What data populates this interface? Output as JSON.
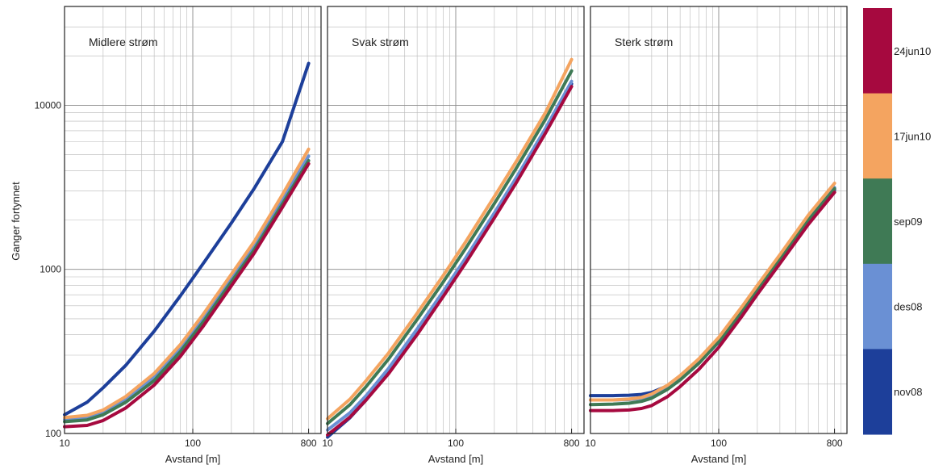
{
  "figure": {
    "ylabel": "Ganger fortynnet",
    "xlabel": "Avstand [m]"
  },
  "colorbar": {
    "entries": [
      {
        "label": "24jun10",
        "color": "#a6093f"
      },
      {
        "label": "17jun10",
        "color": "#f4a460"
      },
      {
        "label": "sep09",
        "color": "#3f7a55"
      },
      {
        "label": "des08",
        "color": "#6a90d4"
      },
      {
        "label": "nov08",
        "color": "#1d3f9a"
      }
    ]
  },
  "chart_data": [
    {
      "type": "line",
      "title": "Midlere strøm",
      "xlabel": "Avstand [m]",
      "ylabel": "Ganger fortynnet",
      "xscale": "log",
      "yscale": "log",
      "xlim": [
        10,
        1000
      ],
      "ylim": [
        100,
        40000
      ],
      "xticks": [
        "10",
        "100",
        "800"
      ],
      "yticks": [
        "100",
        "1000",
        "10000"
      ],
      "grid": true,
      "x": [
        10,
        15,
        20,
        30,
        50,
        80,
        120,
        200,
        300,
        500,
        800
      ],
      "series": [
        {
          "name": "nov08",
          "color": "#1d3f9a",
          "values": [
            130,
            155,
            190,
            260,
            420,
            690,
            1080,
            1920,
            3100,
            6000,
            18000
          ]
        },
        {
          "name": "des08",
          "color": "#6a90d4",
          "values": [
            122,
            126,
            135,
            162,
            220,
            330,
            500,
            880,
            1380,
            2650,
            4900
          ]
        },
        {
          "name": "sep09",
          "color": "#3f7a55",
          "values": [
            118,
            121,
            130,
            155,
            210,
            315,
            475,
            840,
            1310,
            2500,
            4600
          ]
        },
        {
          "name": "17jun10",
          "color": "#f4a460",
          "values": [
            125,
            129,
            139,
            168,
            232,
            348,
            530,
            935,
            1470,
            2850,
            5400
          ]
        },
        {
          "name": "24jun10",
          "color": "#a6093f",
          "values": [
            110,
            112,
            120,
            143,
            197,
            295,
            448,
            795,
            1250,
            2390,
            4400
          ]
        }
      ]
    },
    {
      "type": "line",
      "title": "Svak strøm",
      "xlabel": "Avstand [m]",
      "xscale": "log",
      "yscale": "log",
      "xlim": [
        10,
        1000
      ],
      "ylim": [
        100,
        40000
      ],
      "xticks": [
        "10",
        "100",
        "800"
      ],
      "grid": true,
      "x": [
        10,
        15,
        20,
        30,
        50,
        80,
        120,
        200,
        300,
        500,
        800
      ],
      "series": [
        {
          "name": "nov08",
          "color": "#1d3f9a",
          "values": [
            95,
            125,
            160,
            235,
            410,
            700,
            1120,
            2100,
            3500,
            6900,
            13500
          ]
        },
        {
          "name": "des08",
          "color": "#6a90d4",
          "values": [
            105,
            134,
            170,
            250,
            433,
            735,
            1180,
            2210,
            3680,
            7200,
            14000
          ]
        },
        {
          "name": "sep09",
          "color": "#3f7a55",
          "values": [
            115,
            150,
            193,
            285,
            495,
            840,
            1350,
            2520,
            4200,
            8200,
            16200
          ]
        },
        {
          "name": "17jun10",
          "color": "#f4a460",
          "values": [
            123,
            162,
            210,
            310,
            540,
            920,
            1480,
            2780,
            4620,
            9000,
            19000
          ]
        },
        {
          "name": "24jun10",
          "color": "#a6093f",
          "values": [
            98,
            126,
            160,
            232,
            400,
            685,
            1100,
            2060,
            3430,
            6750,
            13000
          ]
        }
      ]
    },
    {
      "type": "line",
      "title": "Sterk strøm",
      "xlabel": "Avstand [m]",
      "xscale": "log",
      "yscale": "log",
      "xlim": [
        10,
        1000
      ],
      "ylim": [
        100,
        40000
      ],
      "xticks": [
        "10",
        "100",
        "800"
      ],
      "grid": true,
      "x": [
        10,
        15,
        20,
        25,
        30,
        40,
        50,
        70,
        100,
        150,
        200,
        300,
        500,
        800
      ],
      "series": [
        {
          "name": "nov08",
          "color": "#1d3f9a",
          "values": [
            170,
            170,
            171,
            173,
            178,
            195,
            218,
            270,
            360,
            540,
            740,
            1130,
            1960,
            3050
          ]
        },
        {
          "name": "des08",
          "color": "#6a90d4",
          "values": [
            160,
            160,
            161,
            164,
            170,
            190,
            215,
            270,
            365,
            550,
            755,
            1160,
            2000,
            3150
          ]
        },
        {
          "name": "sep09",
          "color": "#3f7a55",
          "values": [
            150,
            151,
            153,
            157,
            164,
            186,
            212,
            268,
            362,
            548,
            752,
            1150,
            1990,
            3100
          ]
        },
        {
          "name": "17jun10",
          "color": "#f4a460",
          "values": [
            160,
            160,
            162,
            166,
            174,
            197,
            225,
            285,
            385,
            585,
            800,
            1230,
            2140,
            3350
          ]
        },
        {
          "name": "24jun10",
          "color": "#a6093f",
          "values": [
            138,
            138,
            139,
            142,
            148,
            168,
            193,
            246,
            335,
            512,
            705,
            1085,
            1880,
            2950
          ]
        }
      ]
    }
  ]
}
